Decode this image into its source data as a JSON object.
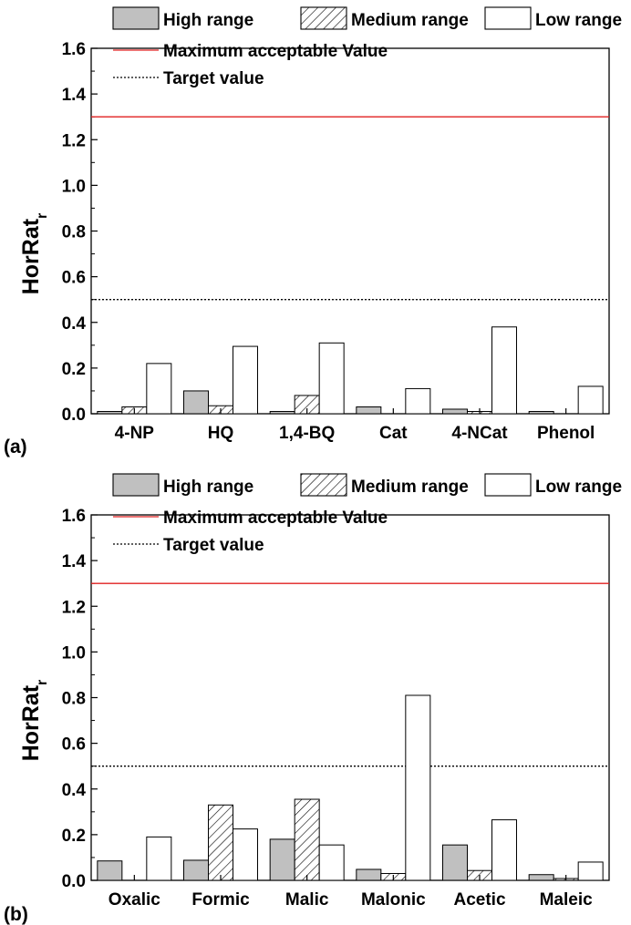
{
  "chart_data": [
    {
      "type": "bar",
      "panel_label": "(a)",
      "ylabel": "HorRat",
      "ylabel_subscript": "r",
      "ylim": [
        0,
        1.6
      ],
      "yticks": [
        "0.0",
        "0.2",
        "0.4",
        "0.6",
        "0.8",
        "1.0",
        "1.2",
        "1.4",
        "1.6"
      ],
      "categories": [
        "4-NP",
        "HQ",
        "1,4-BQ",
        "Cat",
        "4-NCat",
        "Phenol"
      ],
      "series": [
        {
          "name": "High range",
          "fill": "#c0c0c0",
          "pattern": "solid",
          "values": [
            0.01,
            0.1,
            0.01,
            0.03,
            0.02,
            0.01
          ]
        },
        {
          "name": "Medium range",
          "fill": "#ffffff",
          "pattern": "hatch",
          "values": [
            0.03,
            0.035,
            0.08,
            0.0,
            0.01,
            0.0
          ]
        },
        {
          "name": "Low range",
          "fill": "#ffffff",
          "pattern": "solid",
          "values": [
            0.22,
            0.295,
            0.31,
            0.11,
            0.38,
            0.12
          ]
        }
      ],
      "reference_lines": [
        {
          "name": "Maximum acceptable Value",
          "value": 1.3,
          "color": "#e02020",
          "style": "solid"
        },
        {
          "name": "Target value",
          "value": 0.5,
          "color": "#000000",
          "style": "dotted"
        }
      ],
      "grid": false,
      "legend_placement": "top"
    },
    {
      "type": "bar",
      "panel_label": "(b)",
      "ylabel": "HorRat",
      "ylabel_subscript": "r",
      "ylim": [
        0,
        1.6
      ],
      "yticks": [
        "0.0",
        "0.2",
        "0.4",
        "0.6",
        "0.8",
        "1.0",
        "1.2",
        "1.4",
        "1.6"
      ],
      "categories": [
        "Oxalic",
        "Formic",
        "Malic",
        "Malonic",
        "Acetic",
        "Maleic"
      ],
      "series": [
        {
          "name": "High range",
          "fill": "#c0c0c0",
          "pattern": "solid",
          "values": [
            0.085,
            0.088,
            0.18,
            0.048,
            0.155,
            0.025
          ]
        },
        {
          "name": "Medium range",
          "fill": "#ffffff",
          "pattern": "hatch",
          "values": [
            0.0,
            0.33,
            0.355,
            0.03,
            0.043,
            0.008
          ]
        },
        {
          "name": "Low range",
          "fill": "#ffffff",
          "pattern": "solid",
          "values": [
            0.19,
            0.225,
            0.155,
            0.81,
            0.265,
            0.08
          ]
        }
      ],
      "reference_lines": [
        {
          "name": "Maximum acceptable Value",
          "value": 1.3,
          "color": "#e02020",
          "style": "solid"
        },
        {
          "name": "Target value",
          "value": 0.5,
          "color": "#000000",
          "style": "dotted"
        }
      ],
      "grid": false,
      "legend_placement": "top"
    }
  ]
}
